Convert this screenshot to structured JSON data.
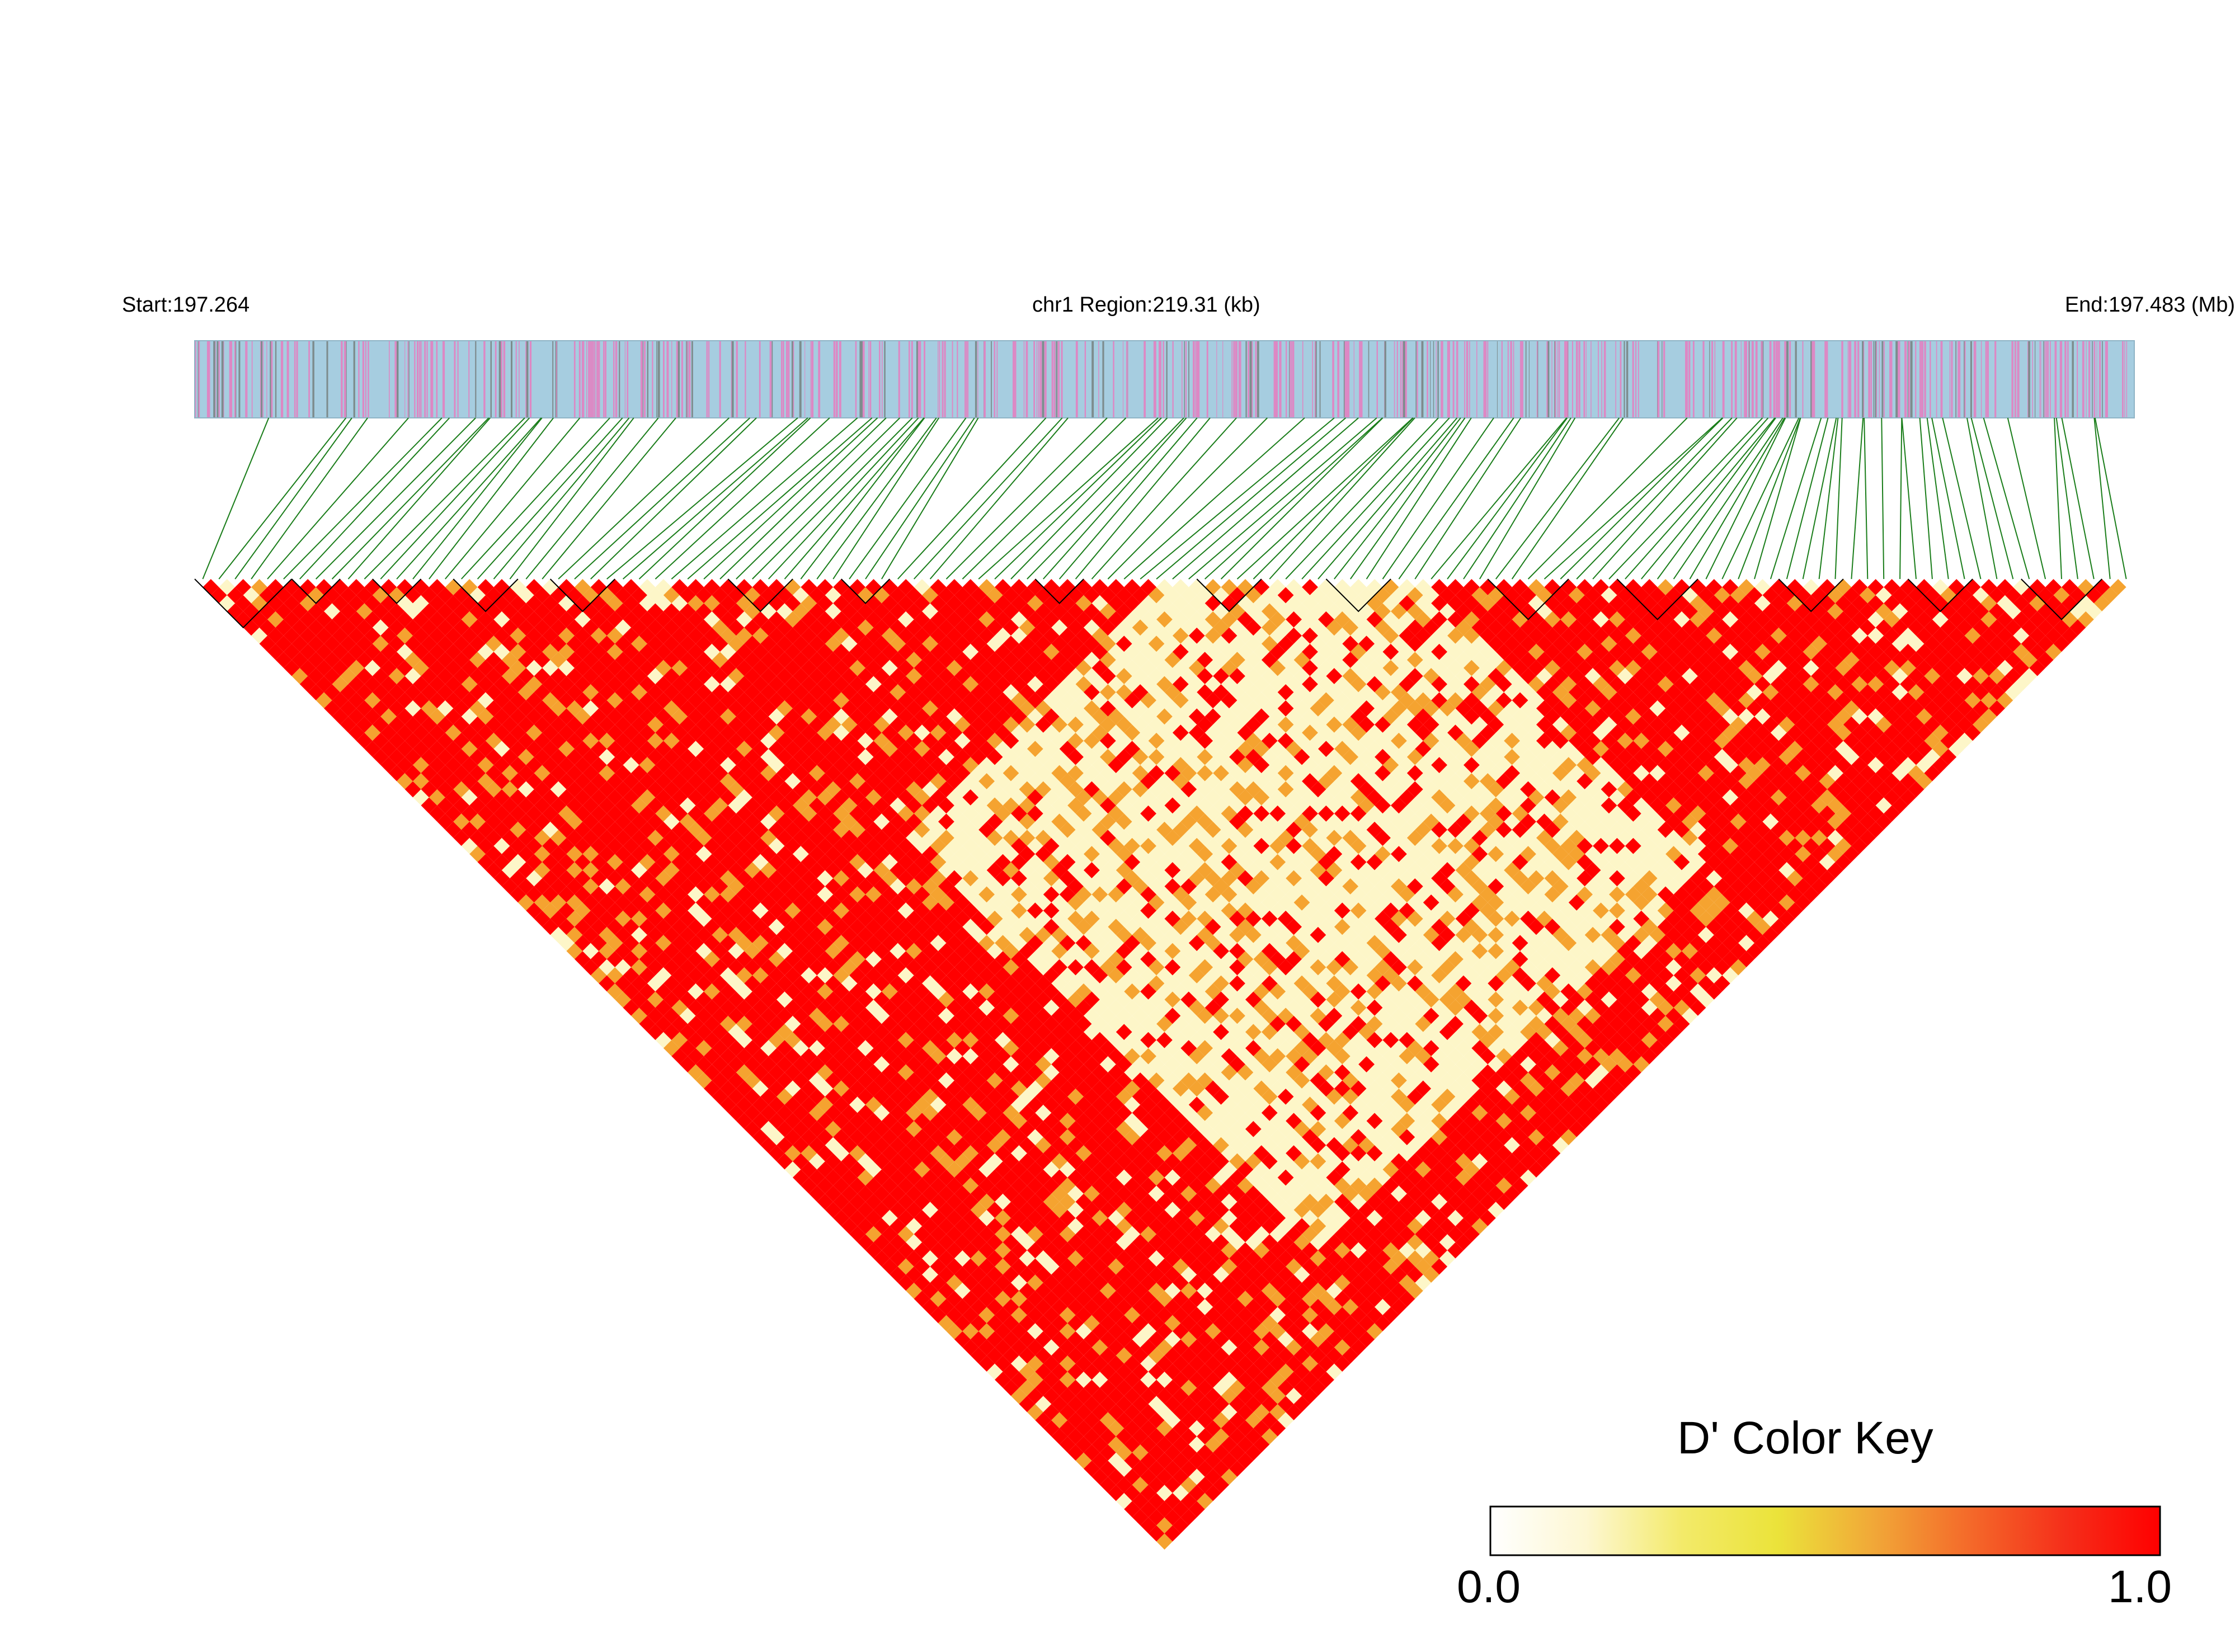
{
  "header": {
    "start_label": "Start:197.264",
    "region_label": "chr1 Region:219.31 (kb)",
    "end_label": "End:197.483 (Mb)"
  },
  "color_key": {
    "title": "D' Color Key",
    "min_label": "0.0",
    "max_label": "1.0",
    "stops": [
      "#ffffff",
      "#fdf7d2",
      "#f3ea6a",
      "#ebe33a",
      "#f1a838",
      "#f46a2a",
      "#f52f1a",
      "#ff0000"
    ]
  },
  "colors": {
    "track_background": "#a6cde0",
    "variant_mark_pink": "#dd88c4",
    "variant_mark_gray": "#7d8c8d",
    "connector_green": "#1a7d1a",
    "ld_high": "#ff0000",
    "ld_mid": "#f5a330",
    "ld_low": "#fdf6c8"
  }
}
